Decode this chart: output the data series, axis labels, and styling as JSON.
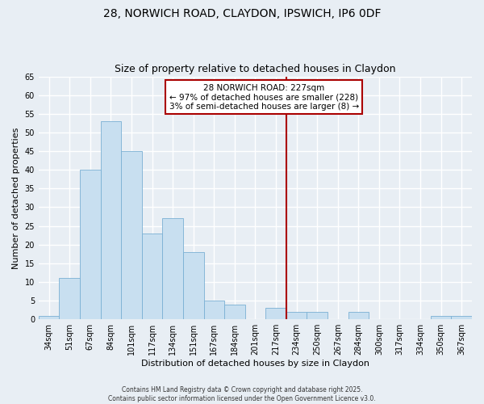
{
  "title": "28, NORWICH ROAD, CLAYDON, IPSWICH, IP6 0DF",
  "subtitle": "Size of property relative to detached houses in Claydon",
  "xlabel": "Distribution of detached houses by size in Claydon",
  "ylabel": "Number of detached properties",
  "bar_labels": [
    "34sqm",
    "51sqm",
    "67sqm",
    "84sqm",
    "101sqm",
    "117sqm",
    "134sqm",
    "151sqm",
    "167sqm",
    "184sqm",
    "201sqm",
    "217sqm",
    "234sqm",
    "250sqm",
    "267sqm",
    "284sqm",
    "300sqm",
    "317sqm",
    "334sqm",
    "350sqm",
    "367sqm"
  ],
  "bar_values": [
    1,
    11,
    40,
    53,
    45,
    23,
    27,
    18,
    5,
    4,
    0,
    3,
    2,
    2,
    0,
    2,
    0,
    0,
    0,
    1,
    1
  ],
  "bar_color": "#c8dff0",
  "bar_edge_color": "#7ab0d4",
  "vline_x_index": 11.5,
  "vline_color": "#aa0000",
  "ylim": [
    0,
    65
  ],
  "yticks": [
    0,
    5,
    10,
    15,
    20,
    25,
    30,
    35,
    40,
    45,
    50,
    55,
    60,
    65
  ],
  "annotation_title": "28 NORWICH ROAD: 227sqm",
  "annotation_line1": "← 97% of detached houses are smaller (228)",
  "annotation_line2": "3% of semi-detached houses are larger (8) →",
  "footer1": "Contains HM Land Registry data © Crown copyright and database right 2025.",
  "footer2": "Contains public sector information licensed under the Open Government Licence v3.0.",
  "bg_color": "#e8eef4",
  "grid_color": "#ffffff",
  "title_fontsize": 10,
  "axis_label_fontsize": 8,
  "tick_fontsize": 7
}
